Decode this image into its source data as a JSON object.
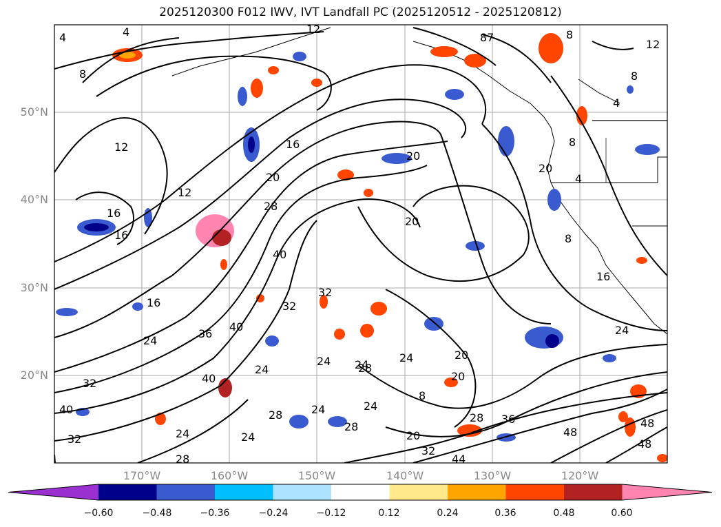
{
  "title": "2025120300 F012 IWV, IVT Landfall PC (2025120512 - 2025120812)",
  "map": {
    "lon_range": [
      180,
      110
    ],
    "lat_range": [
      10,
      60
    ],
    "lat_labels": [
      "50°N",
      "40°N",
      "30°N",
      "20°N"
    ],
    "lon_labels": [
      "170°W",
      "160°W",
      "150°W",
      "140°W",
      "130°W",
      "120°W"
    ],
    "grid": true
  },
  "contours": {
    "unit_note": "",
    "labels": [
      "4",
      "4",
      "8",
      "8",
      "12",
      "12",
      "12",
      "16",
      "16",
      "16",
      "16",
      "20",
      "20",
      "20",
      "20",
      "20",
      "24",
      "24",
      "24",
      "24",
      "24",
      "24",
      "24",
      "24",
      "28",
      "28",
      "28",
      "28",
      "28",
      "32",
      "32",
      "32",
      "32",
      "36",
      "36",
      "40",
      "40",
      "40",
      "40",
      "44",
      "48",
      "48",
      "48",
      "8",
      "8",
      "4",
      "4",
      "8",
      "87",
      "16",
      "20",
      "24",
      "12",
      "8",
      "28",
      "24",
      "32",
      "20"
    ]
  },
  "colorbar": {
    "colors": [
      "#9b30d0",
      "#00008b",
      "#3a5bd0",
      "#00bfff",
      "#aee3ff",
      "#ffffff",
      "#ffe98a",
      "#ffa500",
      "#ff4500",
      "#b22222",
      "#ff85b0"
    ],
    "tick_labels": [
      "−0.60",
      "−0.48",
      "−0.36",
      "−0.24",
      "−0.12",
      "0.12",
      "0.24",
      "0.36",
      "0.48",
      "0.60"
    ]
  }
}
